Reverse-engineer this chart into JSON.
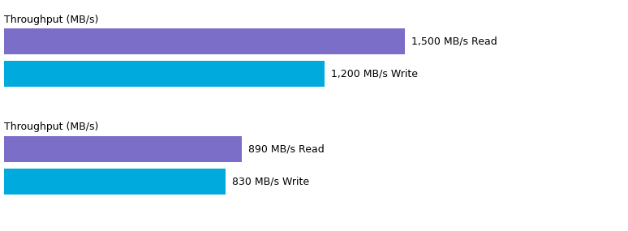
{
  "group1_title": "Throughput (MB/s)",
  "group2_title": "Throughput (MB/s)",
  "bar1_value": 1500,
  "bar2_value": 1200,
  "bar3_value": 890,
  "bar4_value": 830,
  "bar1_label": "1,500 MB/s Read",
  "bar2_label": "1,200 MB/s Write",
  "bar3_label": "890 MB/s Read",
  "bar4_label": "830 MB/s Write",
  "bar_purple": "#7B6EC8",
  "bar_cyan": "#00AADD",
  "text_color": "#000000",
  "bg_color": "#FFFFFF",
  "max_value": 1700,
  "title_fontsize": 9,
  "label_fontsize": 9
}
